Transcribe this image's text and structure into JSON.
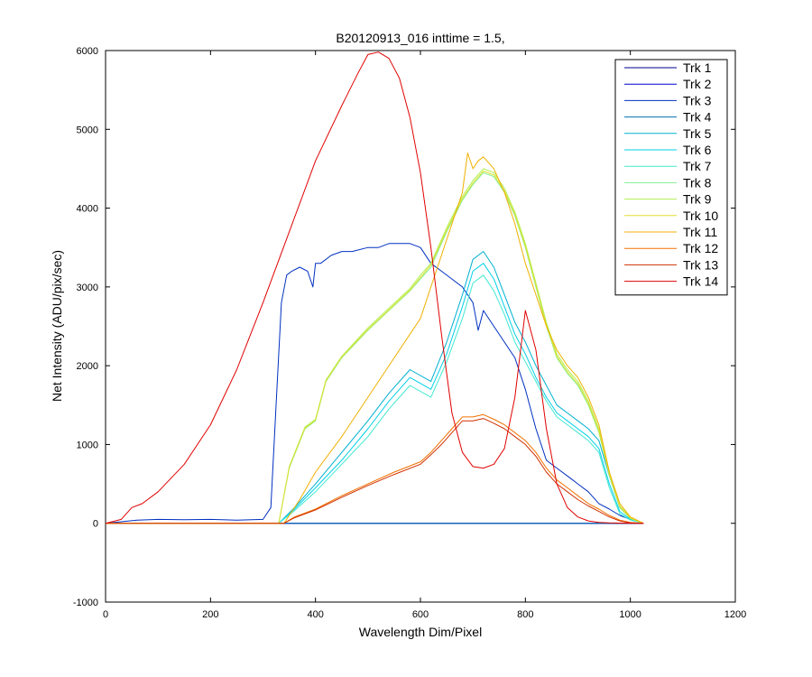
{
  "chart_data": {
    "type": "line",
    "title": "B20120913_016 inttime = 1.5,",
    "xlabel": "Wavelength Dim/Pixel",
    "ylabel": "Net Intensity (ADU/pix/sec)",
    "xlim": [
      0,
      1200
    ],
    "ylim": [
      -1000,
      6000
    ],
    "xticks": [
      0,
      200,
      400,
      600,
      800,
      1000,
      1200
    ],
    "yticks": [
      -1000,
      0,
      1000,
      2000,
      3000,
      4000,
      5000,
      6000
    ],
    "grid": false,
    "legend_position": "top-right",
    "series": [
      {
        "name": "Trk 1",
        "color": "#00008f",
        "x": [
          0,
          1025
        ],
        "y": [
          0,
          0
        ]
      },
      {
        "name": "Trk 2",
        "color": "#0000cf",
        "x": [
          0,
          1025
        ],
        "y": [
          0,
          0
        ]
      },
      {
        "name": "Trk 3",
        "color": "#0030c0",
        "x": [
          0,
          30,
          60,
          100,
          150,
          200,
          250,
          300,
          315,
          325,
          335,
          345,
          355,
          370,
          385,
          395,
          400,
          410,
          430,
          450,
          470,
          500,
          520,
          540,
          560,
          580,
          600,
          620,
          640,
          660,
          680,
          700,
          710,
          720,
          740,
          760,
          780,
          800,
          820,
          840,
          860,
          880,
          900,
          920,
          940,
          960,
          980,
          1000,
          1025
        ],
        "y": [
          0,
          20,
          40,
          50,
          45,
          50,
          40,
          50,
          200,
          1500,
          2800,
          3150,
          3200,
          3250,
          3200,
          3000,
          3300,
          3300,
          3400,
          3450,
          3450,
          3500,
          3500,
          3550,
          3550,
          3550,
          3500,
          3300,
          3200,
          3100,
          3000,
          2800,
          2450,
          2700,
          2500,
          2300,
          2100,
          1700,
          1200,
          800,
          700,
          600,
          500,
          400,
          250,
          180,
          100,
          50,
          0
        ]
      },
      {
        "name": "Trk 4",
        "color": "#0070b0",
        "x": [
          0,
          1025
        ],
        "y": [
          0,
          0
        ]
      },
      {
        "name": "Trk 5",
        "color": "#00b0d0",
        "x": [
          0,
          330,
          360,
          400,
          450,
          500,
          540,
          580,
          620,
          650,
          680,
          700,
          720,
          740,
          760,
          780,
          800,
          820,
          840,
          860,
          880,
          900,
          920,
          940,
          960,
          980,
          1000,
          1025
        ],
        "y": [
          0,
          0,
          200,
          500,
          900,
          1300,
          1650,
          1950,
          1800,
          2300,
          2900,
          3350,
          3450,
          3250,
          2900,
          2550,
          2300,
          2000,
          1750,
          1500,
          1400,
          1300,
          1200,
          1050,
          600,
          200,
          60,
          0
        ]
      },
      {
        "name": "Trk 6",
        "color": "#00d0e8",
        "x": [
          0,
          330,
          360,
          400,
          450,
          500,
          540,
          580,
          620,
          650,
          680,
          700,
          720,
          740,
          760,
          780,
          800,
          820,
          840,
          860,
          880,
          900,
          920,
          940,
          960,
          980,
          1000,
          1025
        ],
        "y": [
          0,
          0,
          180,
          450,
          800,
          1200,
          1550,
          1850,
          1700,
          2150,
          2750,
          3200,
          3300,
          3100,
          2750,
          2400,
          2150,
          1850,
          1600,
          1400,
          1300,
          1200,
          1100,
          950,
          500,
          150,
          50,
          0
        ]
      },
      {
        "name": "Trk 7",
        "color": "#40e8d0",
        "x": [
          0,
          330,
          360,
          400,
          450,
          500,
          540,
          580,
          620,
          650,
          680,
          700,
          720,
          740,
          760,
          780,
          800,
          820,
          840,
          860,
          880,
          900,
          920,
          940,
          960,
          980,
          1000,
          1025
        ],
        "y": [
          0,
          0,
          160,
          400,
          750,
          1100,
          1450,
          1750,
          1600,
          2050,
          2600,
          3050,
          3150,
          2950,
          2650,
          2300,
          2050,
          1800,
          1550,
          1350,
          1250,
          1150,
          1050,
          900,
          450,
          120,
          40,
          0
        ]
      },
      {
        "name": "Trk 8",
        "color": "#80f090",
        "x": [
          0,
          330,
          350,
          380,
          400,
          420,
          450,
          500,
          540,
          580,
          600,
          620,
          650,
          680,
          700,
          720,
          740,
          760,
          780,
          800,
          820,
          840,
          860,
          880,
          900,
          920,
          940,
          960,
          980,
          1000,
          1025
        ],
        "y": [
          0,
          0,
          700,
          1200,
          1300,
          1800,
          2100,
          2450,
          2700,
          2950,
          3100,
          3250,
          3700,
          4100,
          4300,
          4450,
          4400,
          4200,
          3900,
          3500,
          3000,
          2500,
          2100,
          1900,
          1750,
          1500,
          1150,
          600,
          200,
          60,
          0
        ]
      },
      {
        "name": "Trk 9",
        "color": "#b0f050",
        "x": [
          0,
          330,
          350,
          380,
          400,
          420,
          450,
          500,
          540,
          580,
          600,
          620,
          650,
          680,
          700,
          720,
          740,
          760,
          780,
          800,
          820,
          840,
          860,
          880,
          900,
          920,
          940,
          960,
          980,
          1000,
          1025
        ],
        "y": [
          0,
          0,
          720,
          1220,
          1320,
          1820,
          2120,
          2480,
          2730,
          2980,
          3150,
          3300,
          3750,
          4150,
          4350,
          4500,
          4450,
          4250,
          3950,
          3550,
          3050,
          2550,
          2150,
          1950,
          1800,
          1550,
          1200,
          650,
          220,
          70,
          0
        ]
      },
      {
        "name": "Trk 10",
        "color": "#e0e030",
        "x": [
          0,
          330,
          350,
          380,
          400,
          420,
          450,
          500,
          540,
          580,
          600,
          620,
          650,
          680,
          700,
          720,
          740,
          760,
          780,
          800,
          820,
          840,
          860,
          880,
          900,
          920,
          940,
          960,
          980,
          1000,
          1025
        ],
        "y": [
          0,
          0,
          710,
          1210,
          1310,
          1810,
          2110,
          2460,
          2710,
          2960,
          3120,
          3280,
          3720,
          4120,
          4320,
          4470,
          4420,
          4220,
          3920,
          3520,
          3020,
          2520,
          2120,
          1920,
          1770,
          1520,
          1170,
          620,
          210,
          65,
          0
        ]
      },
      {
        "name": "Trk 11",
        "color": "#f0b000",
        "x": [
          0,
          340,
          370,
          400,
          450,
          500,
          540,
          580,
          600,
          620,
          650,
          680,
          690,
          700,
          710,
          720,
          740,
          760,
          780,
          800,
          820,
          840,
          860,
          880,
          900,
          920,
          940,
          960,
          980,
          1000,
          1025
        ],
        "y": [
          0,
          0,
          300,
          650,
          1100,
          1600,
          2000,
          2400,
          2600,
          3000,
          3600,
          4200,
          4700,
          4500,
          4600,
          4650,
          4500,
          4200,
          3800,
          3300,
          2900,
          2500,
          2200,
          2000,
          1850,
          1600,
          1250,
          650,
          250,
          80,
          0
        ]
      },
      {
        "name": "Trk 12",
        "color": "#f07000",
        "x": [
          0,
          340,
          360,
          400,
          450,
          500,
          550,
          600,
          620,
          640,
          660,
          680,
          700,
          720,
          740,
          760,
          780,
          800,
          820,
          840,
          860,
          880,
          900,
          920,
          940,
          960,
          980,
          1000,
          1025
        ],
        "y": [
          0,
          0,
          80,
          180,
          350,
          500,
          650,
          780,
          900,
          1050,
          1200,
          1350,
          1350,
          1380,
          1320,
          1250,
          1150,
          1050,
          900,
          700,
          550,
          450,
          350,
          250,
          180,
          100,
          40,
          10,
          0
        ]
      },
      {
        "name": "Trk 13",
        "color": "#d03000",
        "x": [
          0,
          340,
          360,
          400,
          450,
          500,
          550,
          600,
          620,
          640,
          660,
          680,
          700,
          720,
          740,
          760,
          780,
          800,
          820,
          840,
          860,
          880,
          900,
          920,
          940,
          960,
          980,
          1000,
          1025
        ],
        "y": [
          0,
          0,
          70,
          170,
          330,
          480,
          620,
          750,
          870,
          1000,
          1150,
          1300,
          1300,
          1330,
          1270,
          1200,
          1100,
          1000,
          850,
          650,
          500,
          400,
          300,
          220,
          150,
          80,
          30,
          5,
          0
        ]
      },
      {
        "name": "Trk 14",
        "color": "#e00000",
        "x": [
          0,
          30,
          50,
          70,
          100,
          150,
          200,
          250,
          300,
          350,
          400,
          450,
          480,
          500,
          520,
          540,
          560,
          580,
          600,
          620,
          640,
          660,
          680,
          700,
          720,
          740,
          760,
          780,
          800,
          820,
          840,
          860,
          880,
          900,
          920,
          940,
          960,
          980,
          1000,
          1025
        ],
        "y": [
          0,
          50,
          200,
          250,
          400,
          750,
          1250,
          1950,
          2800,
          3700,
          4600,
          5300,
          5700,
          5950,
          5980,
          5900,
          5650,
          5150,
          4450,
          3500,
          2400,
          1400,
          900,
          720,
          700,
          750,
          950,
          1600,
          2700,
          2200,
          1200,
          500,
          200,
          80,
          30,
          10,
          5,
          2,
          0,
          0
        ]
      }
    ]
  }
}
